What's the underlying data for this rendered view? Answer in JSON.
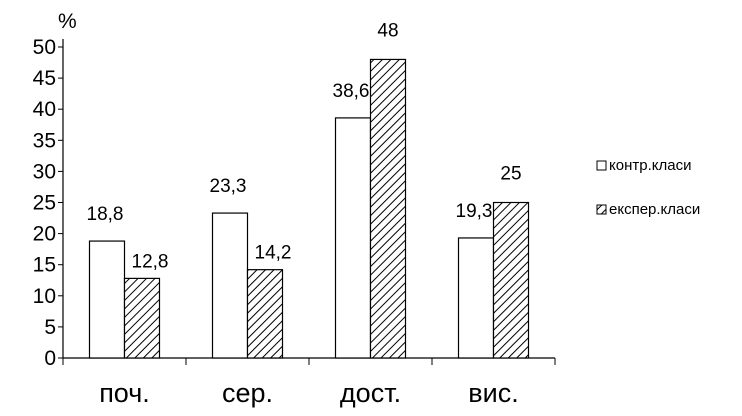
{
  "chart_data": {
    "type": "bar",
    "title": "",
    "xlabel": "",
    "ylabel": "%",
    "categories": [
      "поч.",
      "сер.",
      "дост.",
      "вис."
    ],
    "series": [
      {
        "name": "контр.класи",
        "values": [
          18.8,
          23.3,
          38.6,
          19.3
        ],
        "labels": [
          "18,8",
          "23,3",
          "38,6",
          "19,3"
        ],
        "fill": "white"
      },
      {
        "name": "експер.класи",
        "values": [
          12.8,
          14.2,
          48,
          25
        ],
        "labels": [
          "12,8",
          "14,2",
          "48",
          "25"
        ],
        "fill": "hatched"
      }
    ],
    "ylim": [
      0,
      50
    ],
    "yticks": [
      0,
      5,
      10,
      15,
      20,
      25,
      30,
      35,
      40,
      45,
      50
    ],
    "legend": "right",
    "grid": false
  },
  "colors": {
    "stroke": "#000000",
    "background": "#ffffff"
  }
}
